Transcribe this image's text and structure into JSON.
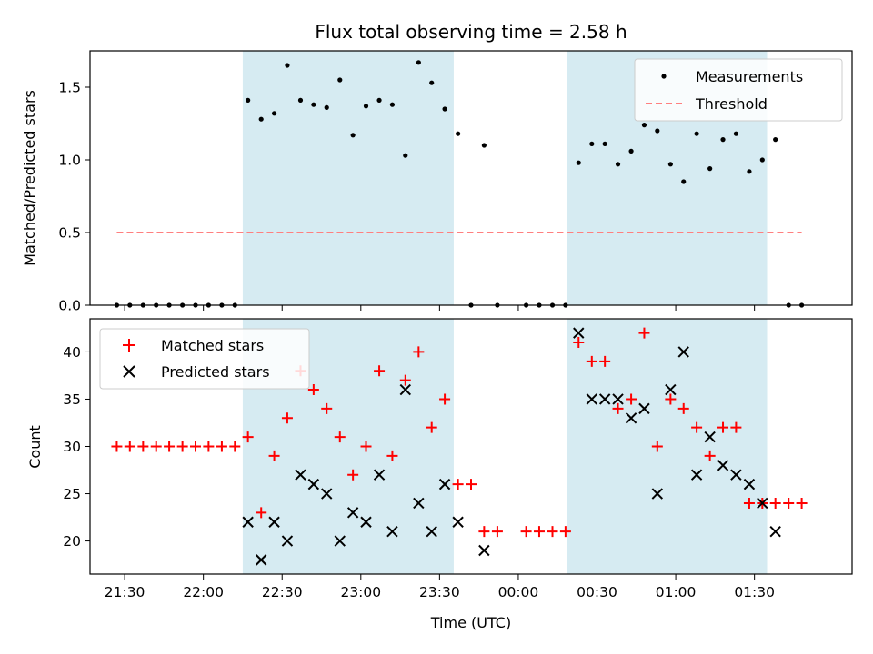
{
  "chart_data": {
    "type": "scatter",
    "title": "Flux total observing time = 2.58 h",
    "xlabel": "Time (UTC)",
    "x_unit": "hours since 21:30 UTC (21:30 = 0)",
    "x_tick_labels": [
      "21:30",
      "22:00",
      "22:30",
      "23:00",
      "23:30",
      "00:00",
      "00:30",
      "01:00",
      "01:30"
    ],
    "x_tick_values": [
      0,
      0.5,
      1,
      1.5,
      2,
      2.5,
      3,
      3.5,
      4
    ],
    "xlim": [
      -0.22,
      4.62
    ],
    "shaded_spans": [
      [
        0.75,
        2.09
      ],
      [
        2.81,
        4.08
      ]
    ],
    "shade_color": "#add8e6",
    "panels": [
      {
        "ylabel": "Matched/Predicted stars",
        "ylim": [
          0,
          1.75
        ],
        "y_tick_values": [
          0,
          0.5,
          1,
          1.5
        ],
        "y_tick_labels": [
          "0.0",
          "0.5",
          "1.0",
          "1.5"
        ],
        "legend": {
          "placement": "upper right",
          "entries": [
            "Measurements",
            "Threshold"
          ]
        },
        "series": [
          {
            "name": "Measurements",
            "marker": "dot",
            "color": "#000000",
            "points": [
              [
                -0.05,
                0
              ],
              [
                0.033,
                0
              ],
              [
                0.117,
                0
              ],
              [
                0.2,
                0
              ],
              [
                0.283,
                0
              ],
              [
                0.367,
                0
              ],
              [
                0.45,
                0
              ],
              [
                0.533,
                0
              ],
              [
                0.617,
                0
              ],
              [
                0.7,
                0
              ],
              [
                0.783,
                1.41
              ],
              [
                0.867,
                1.28
              ],
              [
                0.95,
                1.32
              ],
              [
                1.033,
                1.65
              ],
              [
                1.117,
                1.41
              ],
              [
                1.2,
                1.38
              ],
              [
                1.283,
                1.36
              ],
              [
                1.367,
                1.55
              ],
              [
                1.45,
                1.17
              ],
              [
                1.533,
                1.37
              ],
              [
                1.617,
                1.41
              ],
              [
                1.7,
                1.38
              ],
              [
                1.783,
                1.03
              ],
              [
                1.867,
                1.67
              ],
              [
                1.95,
                1.53
              ],
              [
                2.033,
                1.35
              ],
              [
                2.117,
                1.18
              ],
              [
                2.2,
                0
              ],
              [
                2.283,
                1.1
              ],
              [
                2.367,
                0
              ],
              [
                2.55,
                0
              ],
              [
                2.633,
                0
              ],
              [
                2.717,
                0
              ],
              [
                2.8,
                0
              ],
              [
                2.883,
                0.98
              ],
              [
                2.967,
                1.11
              ],
              [
                3.05,
                1.11
              ],
              [
                3.133,
                0.97
              ],
              [
                3.217,
                1.06
              ],
              [
                3.3,
                1.24
              ],
              [
                3.383,
                1.2
              ],
              [
                3.467,
                0.97
              ],
              [
                3.55,
                0.85
              ],
              [
                3.633,
                1.18
              ],
              [
                3.717,
                0.94
              ],
              [
                3.8,
                1.14
              ],
              [
                3.883,
                1.18
              ],
              [
                3.967,
                0.92
              ],
              [
                4.05,
                1.0
              ],
              [
                4.133,
                1.14
              ],
              [
                4.217,
                0
              ],
              [
                4.3,
                0
              ]
            ]
          },
          {
            "name": "Threshold",
            "marker": "dashed-line",
            "color": "#ff7f7f",
            "x_range": [
              -0.05,
              4.3
            ],
            "y": 0.5
          }
        ]
      },
      {
        "ylabel": "Count",
        "ylim": [
          16.5,
          43.5
        ],
        "y_tick_values": [
          20,
          25,
          30,
          35,
          40
        ],
        "y_tick_labels": [
          "20",
          "25",
          "30",
          "35",
          "40"
        ],
        "legend": {
          "placement": "upper left",
          "entries": [
            "Matched stars",
            "Predicted stars"
          ]
        },
        "series": [
          {
            "name": "Matched stars",
            "marker": "plus",
            "color": "#ff0000",
            "points": [
              [
                -0.05,
                30
              ],
              [
                0.033,
                30
              ],
              [
                0.117,
                30
              ],
              [
                0.2,
                30
              ],
              [
                0.283,
                30
              ],
              [
                0.367,
                30
              ],
              [
                0.45,
                30
              ],
              [
                0.533,
                30
              ],
              [
                0.617,
                30
              ],
              [
                0.7,
                30
              ],
              [
                0.783,
                31
              ],
              [
                0.867,
                23
              ],
              [
                0.95,
                29
              ],
              [
                1.033,
                33
              ],
              [
                1.117,
                38
              ],
              [
                1.2,
                36
              ],
              [
                1.283,
                34
              ],
              [
                1.367,
                31
              ],
              [
                1.45,
                27
              ],
              [
                1.533,
                30
              ],
              [
                1.617,
                38
              ],
              [
                1.7,
                29
              ],
              [
                1.783,
                37
              ],
              [
                1.867,
                40
              ],
              [
                1.95,
                32
              ],
              [
                2.033,
                35
              ],
              [
                2.117,
                26
              ],
              [
                2.2,
                26
              ],
              [
                2.283,
                21
              ],
              [
                2.367,
                21
              ],
              [
                2.55,
                21
              ],
              [
                2.633,
                21
              ],
              [
                2.717,
                21
              ],
              [
                2.8,
                21
              ],
              [
                2.883,
                41
              ],
              [
                2.967,
                39
              ],
              [
                3.05,
                39
              ],
              [
                3.133,
                34
              ],
              [
                3.217,
                35
              ],
              [
                3.3,
                42
              ],
              [
                3.383,
                30
              ],
              [
                3.467,
                35
              ],
              [
                3.55,
                34
              ],
              [
                3.633,
                32
              ],
              [
                3.717,
                29
              ],
              [
                3.8,
                32
              ],
              [
                3.883,
                32
              ],
              [
                3.967,
                24
              ],
              [
                4.05,
                24
              ],
              [
                4.133,
                24
              ],
              [
                4.217,
                24
              ],
              [
                4.3,
                24
              ]
            ]
          },
          {
            "name": "Predicted stars",
            "marker": "x",
            "color": "#000000",
            "points": [
              [
                0.783,
                22
              ],
              [
                0.867,
                18
              ],
              [
                0.95,
                22
              ],
              [
                1.033,
                20
              ],
              [
                1.117,
                27
              ],
              [
                1.2,
                26
              ],
              [
                1.283,
                25
              ],
              [
                1.367,
                20
              ],
              [
                1.45,
                23
              ],
              [
                1.533,
                22
              ],
              [
                1.617,
                27
              ],
              [
                1.7,
                21
              ],
              [
                1.783,
                36
              ],
              [
                1.867,
                24
              ],
              [
                1.95,
                21
              ],
              [
                2.033,
                26
              ],
              [
                2.117,
                22
              ],
              [
                2.283,
                19
              ],
              [
                2.883,
                42
              ],
              [
                2.967,
                35
              ],
              [
                3.05,
                35
              ],
              [
                3.133,
                35
              ],
              [
                3.217,
                33
              ],
              [
                3.3,
                34
              ],
              [
                3.383,
                25
              ],
              [
                3.467,
                36
              ],
              [
                3.55,
                40
              ],
              [
                3.633,
                27
              ],
              [
                3.717,
                31
              ],
              [
                3.8,
                28
              ],
              [
                3.883,
                27
              ],
              [
                3.967,
                26
              ],
              [
                4.05,
                24
              ],
              [
                4.133,
                21
              ]
            ]
          }
        ]
      }
    ]
  }
}
